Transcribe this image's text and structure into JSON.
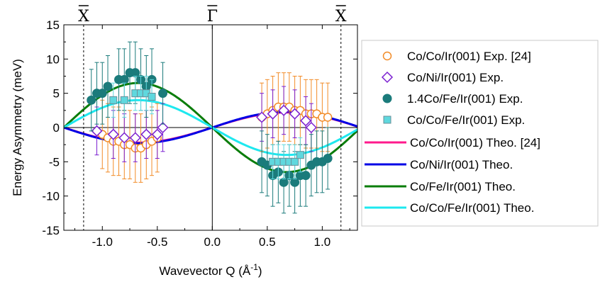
{
  "chart_data": {
    "type": "scatter",
    "title": "",
    "xlabel": "Wavevector Q (Å",
    "xlabel_sup": "-1",
    "xlabel_close": ")",
    "ylabel": "Energy Asymmetry (meV)",
    "xlim": [
      -1.35,
      1.32
    ],
    "ylim": [
      -15,
      15
    ],
    "x_ticks": [
      -1.0,
      -0.5,
      0.0,
      0.5,
      1.0
    ],
    "x_tick_labels": [
      "-1.0",
      "-0.5",
      "0.0",
      "0.5",
      "1.0"
    ],
    "y_ticks": [
      -15,
      -10,
      -5,
      0,
      5,
      10,
      15
    ],
    "y_tick_labels": [
      "-15",
      "-10",
      "-5",
      "0",
      "5",
      "10",
      "15"
    ],
    "grid": false,
    "legend_position": "right",
    "symmetry_points": [
      {
        "label": "X",
        "x": -1.17,
        "dashed": true
      },
      {
        "label": "Γ",
        "x": 0.0,
        "dashed": false
      },
      {
        "label": "X",
        "x": 1.17,
        "dashed": true
      }
    ],
    "series": [
      {
        "name": "Co/Co/Ir(001) Exp. [24]",
        "kind": "points",
        "marker": "circle-open",
        "color": "#f28c28",
        "points": [
          {
            "x": -1.0,
            "y": -1.0,
            "err": 5.0
          },
          {
            "x": -0.95,
            "y": -1.5,
            "err": 5.0
          },
          {
            "x": -0.9,
            "y": -2.0,
            "err": 5.0
          },
          {
            "x": -0.85,
            "y": -2.0,
            "err": 5.0
          },
          {
            "x": -0.8,
            "y": -2.5,
            "err": 5.0
          },
          {
            "x": -0.75,
            "y": -2.5,
            "err": 5.0
          },
          {
            "x": -0.7,
            "y": -3.0,
            "err": 5.0
          },
          {
            "x": -0.65,
            "y": -3.0,
            "err": 5.0
          },
          {
            "x": -0.6,
            "y": -2.5,
            "err": 5.0
          },
          {
            "x": -0.55,
            "y": -2.0,
            "err": 5.0
          },
          {
            "x": -0.5,
            "y": -1.5,
            "err": 5.0
          },
          {
            "x": 0.45,
            "y": 1.5,
            "err": 5.0
          },
          {
            "x": 0.5,
            "y": 2.0,
            "err": 5.0
          },
          {
            "x": 0.55,
            "y": 2.5,
            "err": 5.0
          },
          {
            "x": 0.6,
            "y": 3.0,
            "err": 5.0
          },
          {
            "x": 0.65,
            "y": 3.0,
            "err": 5.0
          },
          {
            "x": 0.7,
            "y": 3.0,
            "err": 5.0
          },
          {
            "x": 0.75,
            "y": 2.5,
            "err": 5.0
          },
          {
            "x": 0.8,
            "y": 2.5,
            "err": 5.0
          },
          {
            "x": 0.85,
            "y": 2.0,
            "err": 5.0
          },
          {
            "x": 0.9,
            "y": 2.0,
            "err": 5.0
          },
          {
            "x": 0.95,
            "y": 2.0,
            "err": 5.0
          },
          {
            "x": 1.0,
            "y": 1.5,
            "err": 5.0
          },
          {
            "x": 1.05,
            "y": 1.5,
            "err": 5.0
          }
        ]
      },
      {
        "name": "Co/Ni/Ir(001) Exp.",
        "kind": "points",
        "marker": "diamond-open",
        "color": "#7b1fd1",
        "points": [
          {
            "x": -1.05,
            "y": -0.5,
            "err": 3.5
          },
          {
            "x": -0.9,
            "y": -1.0,
            "err": 3.5
          },
          {
            "x": -0.8,
            "y": -1.5,
            "err": 3.5
          },
          {
            "x": -0.7,
            "y": -1.5,
            "err": 3.5
          },
          {
            "x": -0.6,
            "y": -1.0,
            "err": 3.5
          },
          {
            "x": -0.5,
            "y": -1.0,
            "err": 3.5
          },
          {
            "x": -0.45,
            "y": 0.0,
            "err": 3.5
          },
          {
            "x": 0.45,
            "y": 1.5,
            "err": 3.5
          },
          {
            "x": 0.55,
            "y": 2.0,
            "err": 3.5
          },
          {
            "x": 0.65,
            "y": 2.5,
            "err": 3.5
          },
          {
            "x": 0.75,
            "y": 2.0,
            "err": 3.5
          },
          {
            "x": 0.85,
            "y": 1.0,
            "err": 3.5
          },
          {
            "x": 0.9,
            "y": 0.0,
            "err": 3.5
          }
        ]
      },
      {
        "name": "1.4Co/Fe/Ir(001) Exp.",
        "kind": "points",
        "marker": "circle-filled",
        "color": "#1b7b7b",
        "points": [
          {
            "x": -1.1,
            "y": 4.0,
            "err": 4.5
          },
          {
            "x": -1.05,
            "y": 5.0,
            "err": 4.5
          },
          {
            "x": -1.0,
            "y": 5.0,
            "err": 4.5
          },
          {
            "x": -0.95,
            "y": 6.0,
            "err": 4.5
          },
          {
            "x": -0.85,
            "y": 7.0,
            "err": 4.5
          },
          {
            "x": -0.8,
            "y": 7.0,
            "err": 4.5
          },
          {
            "x": -0.75,
            "y": 8.0,
            "err": 4.5
          },
          {
            "x": -0.7,
            "y": 8.0,
            "err": 4.5
          },
          {
            "x": -0.65,
            "y": 7.0,
            "err": 4.5
          },
          {
            "x": -0.6,
            "y": 6.0,
            "err": 4.5
          },
          {
            "x": -0.55,
            "y": 7.0,
            "err": 4.5
          },
          {
            "x": -0.45,
            "y": 5.0,
            "err": 4.5
          },
          {
            "x": 0.45,
            "y": -5.0,
            "err": 4.5
          },
          {
            "x": 0.5,
            "y": -5.5,
            "err": 4.5
          },
          {
            "x": 0.55,
            "y": -7.0,
            "err": 4.5
          },
          {
            "x": 0.6,
            "y": -6.5,
            "err": 4.5
          },
          {
            "x": 0.65,
            "y": -8.0,
            "err": 4.5
          },
          {
            "x": 0.7,
            "y": -7.0,
            "err": 4.5
          },
          {
            "x": 0.75,
            "y": -8.0,
            "err": 4.5
          },
          {
            "x": 0.8,
            "y": -7.0,
            "err": 4.5
          },
          {
            "x": 0.85,
            "y": -7.0,
            "err": 4.5
          },
          {
            "x": 0.9,
            "y": -5.5,
            "err": 4.5
          },
          {
            "x": 0.95,
            "y": -5.0,
            "err": 4.5
          },
          {
            "x": 1.0,
            "y": -5.0,
            "err": 4.5
          },
          {
            "x": 1.05,
            "y": -4.5,
            "err": 4.5
          }
        ]
      },
      {
        "name": "Co/Co/Fe/Ir(001) Exp.",
        "kind": "points",
        "marker": "square-filled",
        "color": "#5fd8de",
        "points": [
          {
            "x": -0.9,
            "y": 4.0,
            "err": 2.5
          },
          {
            "x": -0.8,
            "y": 4.0,
            "err": 2.5
          },
          {
            "x": -0.7,
            "y": 5.0,
            "err": 2.5
          },
          {
            "x": -0.65,
            "y": 5.0,
            "err": 2.5
          },
          {
            "x": -0.6,
            "y": 5.0,
            "err": 2.5
          },
          {
            "x": -0.55,
            "y": 4.5,
            "err": 2.5
          },
          {
            "x": 0.55,
            "y": -5.0,
            "err": 2.5
          },
          {
            "x": 0.6,
            "y": -5.0,
            "err": 2.5
          },
          {
            "x": 0.65,
            "y": -5.0,
            "err": 2.5
          },
          {
            "x": 0.7,
            "y": -5.0,
            "err": 2.5
          },
          {
            "x": 0.75,
            "y": -5.0,
            "err": 2.5
          },
          {
            "x": 0.8,
            "y": -4.0,
            "err": 2.5
          }
        ]
      },
      {
        "name": "Co/Co/Ir(001) Theo. [24]",
        "kind": "curve",
        "color": "#ff1a8c",
        "amplitude": 2.2
      },
      {
        "name": "Co/Ni/Ir(001) Theo.",
        "kind": "curve",
        "color": "#0000e6",
        "amplitude": 2.3
      },
      {
        "name": "Co/Fe/Ir(001) Theo.",
        "kind": "curve",
        "color": "#0a7d0a",
        "amplitude": -6.5
      },
      {
        "name": "Co/Co/Fe/Ir(001) Theo.",
        "kind": "curve",
        "color": "#1ee8ef",
        "amplitude": -4.0
      }
    ]
  }
}
